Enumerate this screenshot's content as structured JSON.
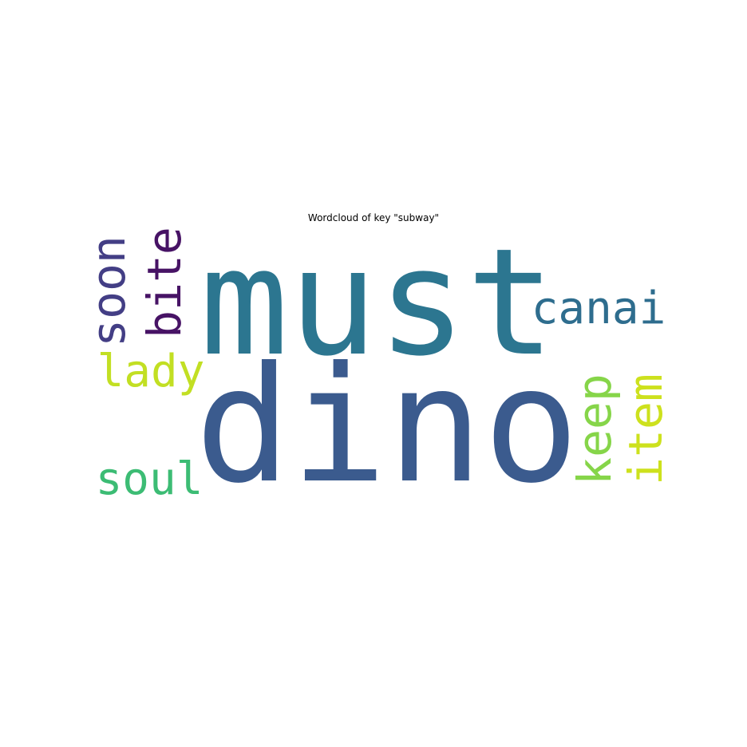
{
  "chart_data": {
    "type": "wordcloud",
    "title": "Wordcloud of key \"subway\"",
    "words": [
      {
        "text": "must",
        "color": "#2c7690",
        "orientation": "horizontal"
      },
      {
        "text": "dino",
        "color": "#3b5b8e",
        "orientation": "horizontal"
      },
      {
        "text": "canai",
        "color": "#2e6d8e",
        "orientation": "horizontal"
      },
      {
        "text": "soon",
        "color": "#433e85",
        "orientation": "vertical"
      },
      {
        "text": "bite",
        "color": "#471365",
        "orientation": "vertical"
      },
      {
        "text": "lady",
        "color": "#c2df23",
        "orientation": "horizontal"
      },
      {
        "text": "soul",
        "color": "#3cbc74",
        "orientation": "horizontal"
      },
      {
        "text": "keep",
        "color": "#86d549",
        "orientation": "vertical"
      },
      {
        "text": "item",
        "color": "#cde11d",
        "orientation": "vertical"
      }
    ]
  }
}
